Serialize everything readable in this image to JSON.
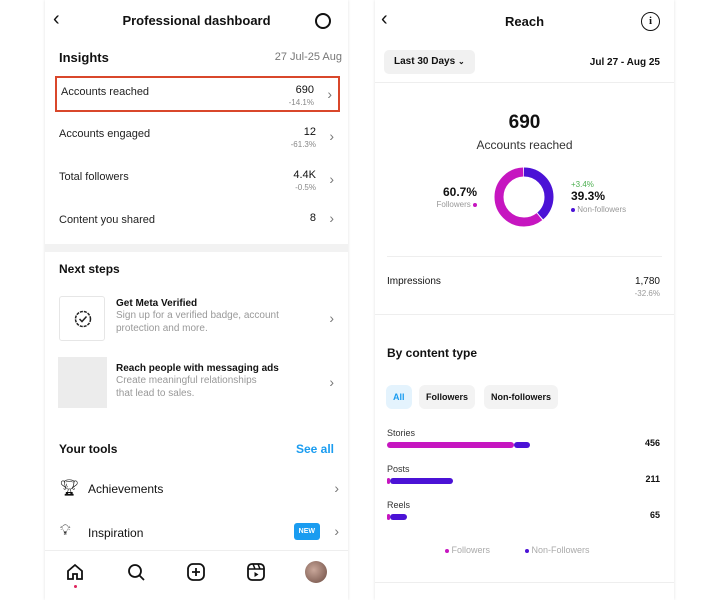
{
  "left": {
    "header": {
      "title": "Professional dashboard",
      "back_icon": "chevron-left-icon",
      "settings_icon": "gear-icon"
    },
    "insights": {
      "title": "Insights",
      "date_range": "27 Jul-25 Aug",
      "rows": [
        {
          "label": "Accounts reached",
          "value": "690",
          "change": "-14.1%",
          "highlighted": true
        },
        {
          "label": "Accounts engaged",
          "value": "12",
          "change": "-61.3%"
        },
        {
          "label": "Total followers",
          "value": "4.4K",
          "change": "-0.5%"
        },
        {
          "label": "Content you shared",
          "value": "8",
          "change": ""
        }
      ]
    },
    "next_steps": {
      "title": "Next steps",
      "items": [
        {
          "title": "Get Meta Verified",
          "desc": "Sign up for a verified badge, account protection and more.",
          "icon": "verified-badge-icon"
        },
        {
          "title": "Reach people with messaging ads",
          "desc": "Create meaningful relationships that lead to sales."
        }
      ]
    },
    "tools": {
      "title": "Your tools",
      "see_all": "See all",
      "items": [
        {
          "label": "Achievements",
          "icon": "trophy-icon"
        },
        {
          "label": "Inspiration",
          "icon": "lightbulb-icon",
          "badge": "NEW"
        }
      ]
    },
    "nav": [
      "home-icon",
      "search-icon",
      "create-icon",
      "reels-icon",
      "profile-avatar"
    ]
  },
  "right": {
    "header": {
      "title": "Reach",
      "info_icon": "info-icon"
    },
    "filter": {
      "label": "Last 30 Days",
      "date_range": "Jul 27 - Aug 25"
    },
    "summary": {
      "value": "690",
      "label": "Accounts reached",
      "followers": {
        "pct": "60.7%",
        "label": "Followers"
      },
      "non_followers": {
        "pct": "39.3%",
        "label": "Non-followers",
        "change": "+3.4%"
      }
    },
    "impressions": {
      "label": "Impressions",
      "value": "1,780",
      "change": "-32.6%"
    },
    "by_content": {
      "title": "By content type",
      "tabs": [
        "All",
        "Followers",
        "Non-followers"
      ],
      "legend": [
        "Followers",
        "Non-Followers"
      ]
    }
  },
  "colors": {
    "followers": "#c616c0",
    "non_followers": "#4b12d6",
    "accent": "#1a9cf0",
    "highlight": "#d9472b"
  },
  "chart_data": [
    {
      "type": "pie",
      "title": "Accounts reached",
      "categories": [
        "Followers",
        "Non-followers"
      ],
      "values": [
        60.7,
        39.3
      ]
    },
    {
      "type": "bar",
      "categories": [
        "Stories",
        "Posts",
        "Reels"
      ],
      "totals": [
        456,
        211,
        65
      ],
      "series": [
        {
          "name": "Followers",
          "values": [
            405,
            8,
            8
          ]
        },
        {
          "name": "Non-Followers",
          "values": [
            51,
            203,
            57
          ]
        }
      ]
    }
  ]
}
